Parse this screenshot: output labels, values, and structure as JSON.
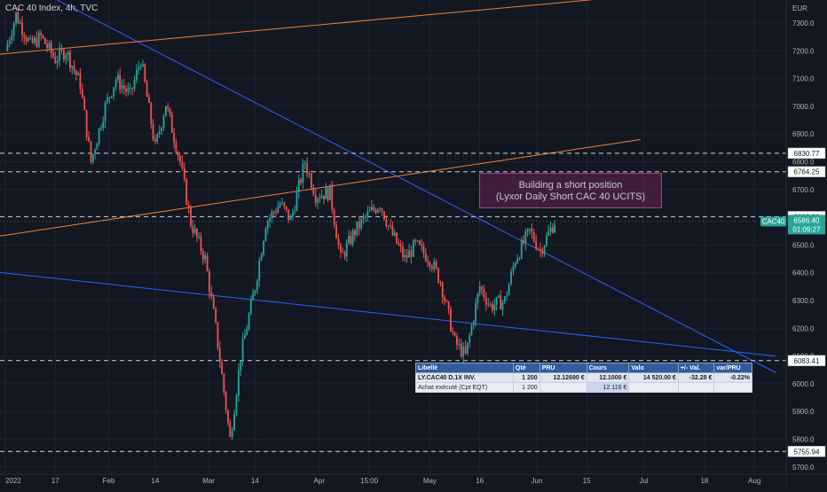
{
  "header": {
    "title": "CAC 40 Index, 4h, TVC"
  },
  "currency": "EUR",
  "annotation": {
    "line1": "Building a short position",
    "line2": "(Lyxor Daily Short CAC 40 UCITS)"
  },
  "symbol_tag": "CAC40",
  "price_tag": {
    "price": "6586.40",
    "countdown": "01:09:27"
  },
  "colors": {
    "bg": "#131722",
    "up": "#26a69a",
    "down": "#ef5350",
    "trend_blue": "#2962ff",
    "trend_orange": "#f57c38"
  },
  "table": {
    "headers": [
      "Libellé",
      "Qté",
      "PRU",
      "Cours",
      "Valo",
      "+/- Val.",
      "var/PRU"
    ],
    "row1": [
      "LY.CAC40 D.1X INV.",
      "1 200",
      "12.12690 €",
      "12.1000 €",
      "14 520.00 €",
      "-32.28 €",
      "-0.22%"
    ],
    "row2": [
      "Achat exécuté (Cpt EQT)",
      "1 200",
      "",
      "12.116 €",
      "",
      "",
      ""
    ]
  },
  "chart_data": {
    "type": "candlestick",
    "title": "CAC 40 Index, 4h, TVC",
    "ylabel": "EUR",
    "ylim": [
      5700,
      7380
    ],
    "y_ticks": [
      7300,
      7200,
      7100,
      7000,
      6900,
      6800,
      6700,
      6600,
      6500,
      6400,
      6300,
      6200,
      6100,
      6000,
      5900,
      5800,
      5700
    ],
    "x_ticks": [
      "2022",
      "17",
      "Feb",
      "14",
      "Mar",
      "14",
      "Apr",
      "15:00",
      "May",
      "16",
      "Jun",
      "15",
      "Jul",
      "18",
      "Aug"
    ],
    "horizontal_levels": [
      {
        "value": 6830.77,
        "label": "6830.77"
      },
      {
        "value": 6764.25,
        "label": "6764.25"
      },
      {
        "value": 6602.23,
        "label": "6602.23"
      },
      {
        "value": 6083.41,
        "label": "6083.41"
      },
      {
        "value": 5755.94,
        "label": "5755.94"
      }
    ],
    "last_price": 6586.4,
    "price_path": [
      [
        "2022-01-03",
        7200
      ],
      [
        "2022-01-06",
        7330
      ],
      [
        "2022-01-10",
        7220
      ],
      [
        "2022-01-13",
        7250
      ],
      [
        "2022-01-17",
        7170
      ],
      [
        "2022-01-20",
        7200
      ],
      [
        "2022-01-24",
        7080
      ],
      [
        "2022-01-27",
        6800
      ],
      [
        "2022-01-31",
        7000
      ],
      [
        "2022-02-03",
        7100
      ],
      [
        "2022-02-07",
        7040
      ],
      [
        "2022-02-10",
        7170
      ],
      [
        "2022-02-14",
        6850
      ],
      [
        "2022-02-17",
        7010
      ],
      [
        "2022-02-21",
        6800
      ],
      [
        "2022-02-24",
        6580
      ],
      [
        "2022-02-28",
        6450
      ],
      [
        "2022-03-03",
        6200
      ],
      [
        "2022-03-07",
        5800
      ],
      [
        "2022-03-10",
        6100
      ],
      [
        "2022-03-14",
        6350
      ],
      [
        "2022-03-17",
        6580
      ],
      [
        "2022-03-21",
        6650
      ],
      [
        "2022-03-24",
        6590
      ],
      [
        "2022-03-28",
        6800
      ],
      [
        "2022-03-31",
        6680
      ],
      [
        "2022-04-04",
        6690
      ],
      [
        "2022-04-07",
        6450
      ],
      [
        "2022-04-11",
        6550
      ],
      [
        "2022-04-14",
        6600
      ],
      [
        "2022-04-18",
        6650
      ],
      [
        "2022-04-21",
        6550
      ],
      [
        "2022-04-25",
        6450
      ],
      [
        "2022-04-28",
        6500
      ],
      [
        "2022-05-02",
        6450
      ],
      [
        "2022-05-05",
        6370
      ],
      [
        "2022-05-09",
        6150
      ],
      [
        "2022-05-12",
        6100
      ],
      [
        "2022-05-16",
        6350
      ],
      [
        "2022-05-19",
        6280
      ],
      [
        "2022-05-23",
        6300
      ],
      [
        "2022-05-26",
        6450
      ],
      [
        "2022-05-30",
        6550
      ],
      [
        "2022-06-02",
        6480
      ],
      [
        "2022-06-06",
        6586
      ]
    ]
  }
}
